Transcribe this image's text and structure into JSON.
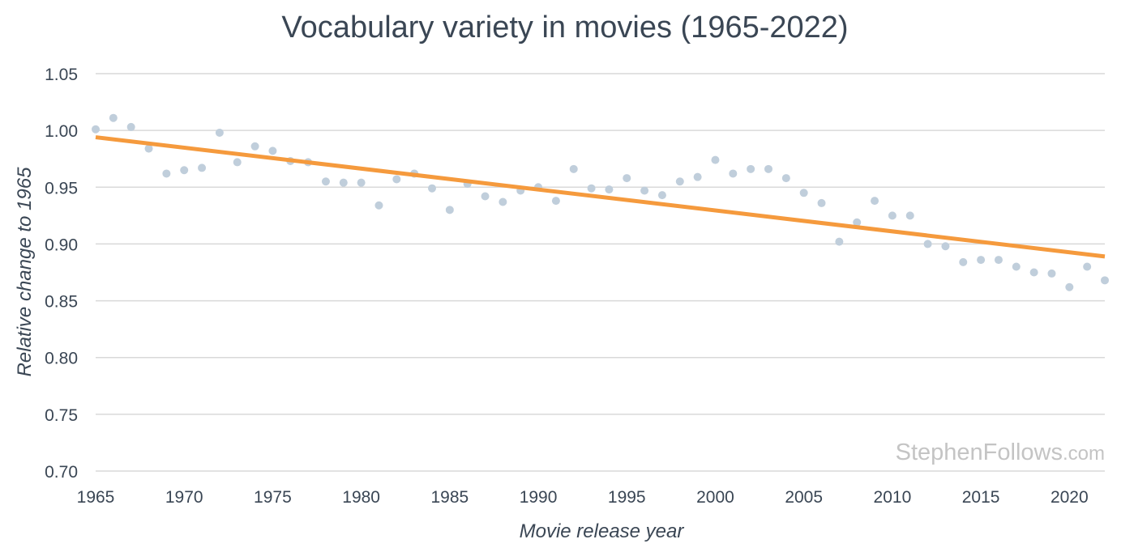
{
  "chart_data": {
    "type": "scatter",
    "title": "Vocabulary variety in movies (1965-2022)",
    "xlabel": "Movie release year",
    "ylabel": "Relative change to 1965",
    "xlim": [
      1965,
      2022
    ],
    "ylim": [
      0.7,
      1.05
    ],
    "x_ticks": [
      "1965",
      "1970",
      "1975",
      "1980",
      "1985",
      "1990",
      "1995",
      "2000",
      "2005",
      "2010",
      "2015",
      "2020"
    ],
    "y_ticks": [
      "0.70",
      "0.75",
      "0.80",
      "0.85",
      "0.90",
      "0.95",
      "1.00",
      "1.05"
    ],
    "grid": true,
    "series": [
      {
        "name": "Vocabulary variety",
        "x": [
          1965,
          1966,
          1967,
          1968,
          1969,
          1970,
          1971,
          1972,
          1973,
          1974,
          1975,
          1976,
          1977,
          1978,
          1979,
          1980,
          1981,
          1982,
          1983,
          1984,
          1985,
          1986,
          1987,
          1988,
          1989,
          1990,
          1991,
          1992,
          1993,
          1994,
          1995,
          1996,
          1997,
          1998,
          1999,
          2000,
          2001,
          2002,
          2003,
          2004,
          2005,
          2006,
          2007,
          2008,
          2009,
          2010,
          2011,
          2012,
          2013,
          2014,
          2015,
          2016,
          2017,
          2018,
          2019,
          2020,
          2021,
          2022
        ],
        "y": [
          1.001,
          1.011,
          1.003,
          0.984,
          0.962,
          0.965,
          0.967,
          0.998,
          0.972,
          0.986,
          0.982,
          0.973,
          0.972,
          0.955,
          0.954,
          0.954,
          0.934,
          0.957,
          0.962,
          0.949,
          0.93,
          0.953,
          0.942,
          0.937,
          0.947,
          0.95,
          0.938,
          0.966,
          0.949,
          0.948,
          0.958,
          0.947,
          0.943,
          0.955,
          0.959,
          0.974,
          0.962,
          0.966,
          0.966,
          0.958,
          0.945,
          0.936,
          0.902,
          0.919,
          0.938,
          0.925,
          0.925,
          0.9,
          0.898,
          0.884,
          0.886,
          0.886,
          0.88,
          0.875,
          0.874,
          0.862,
          0.88,
          0.868
        ]
      }
    ],
    "trendline": {
      "x": [
        1965,
        2022
      ],
      "y": [
        0.994,
        0.889
      ]
    },
    "colors": {
      "points": "#c0cedb",
      "trendline": "#f59a3d",
      "grid": "#d9d9d9",
      "text": "#3a4654",
      "watermark": "#c4c4c4"
    },
    "watermark": {
      "main": "StephenFollows",
      "suffix": ".com"
    }
  }
}
